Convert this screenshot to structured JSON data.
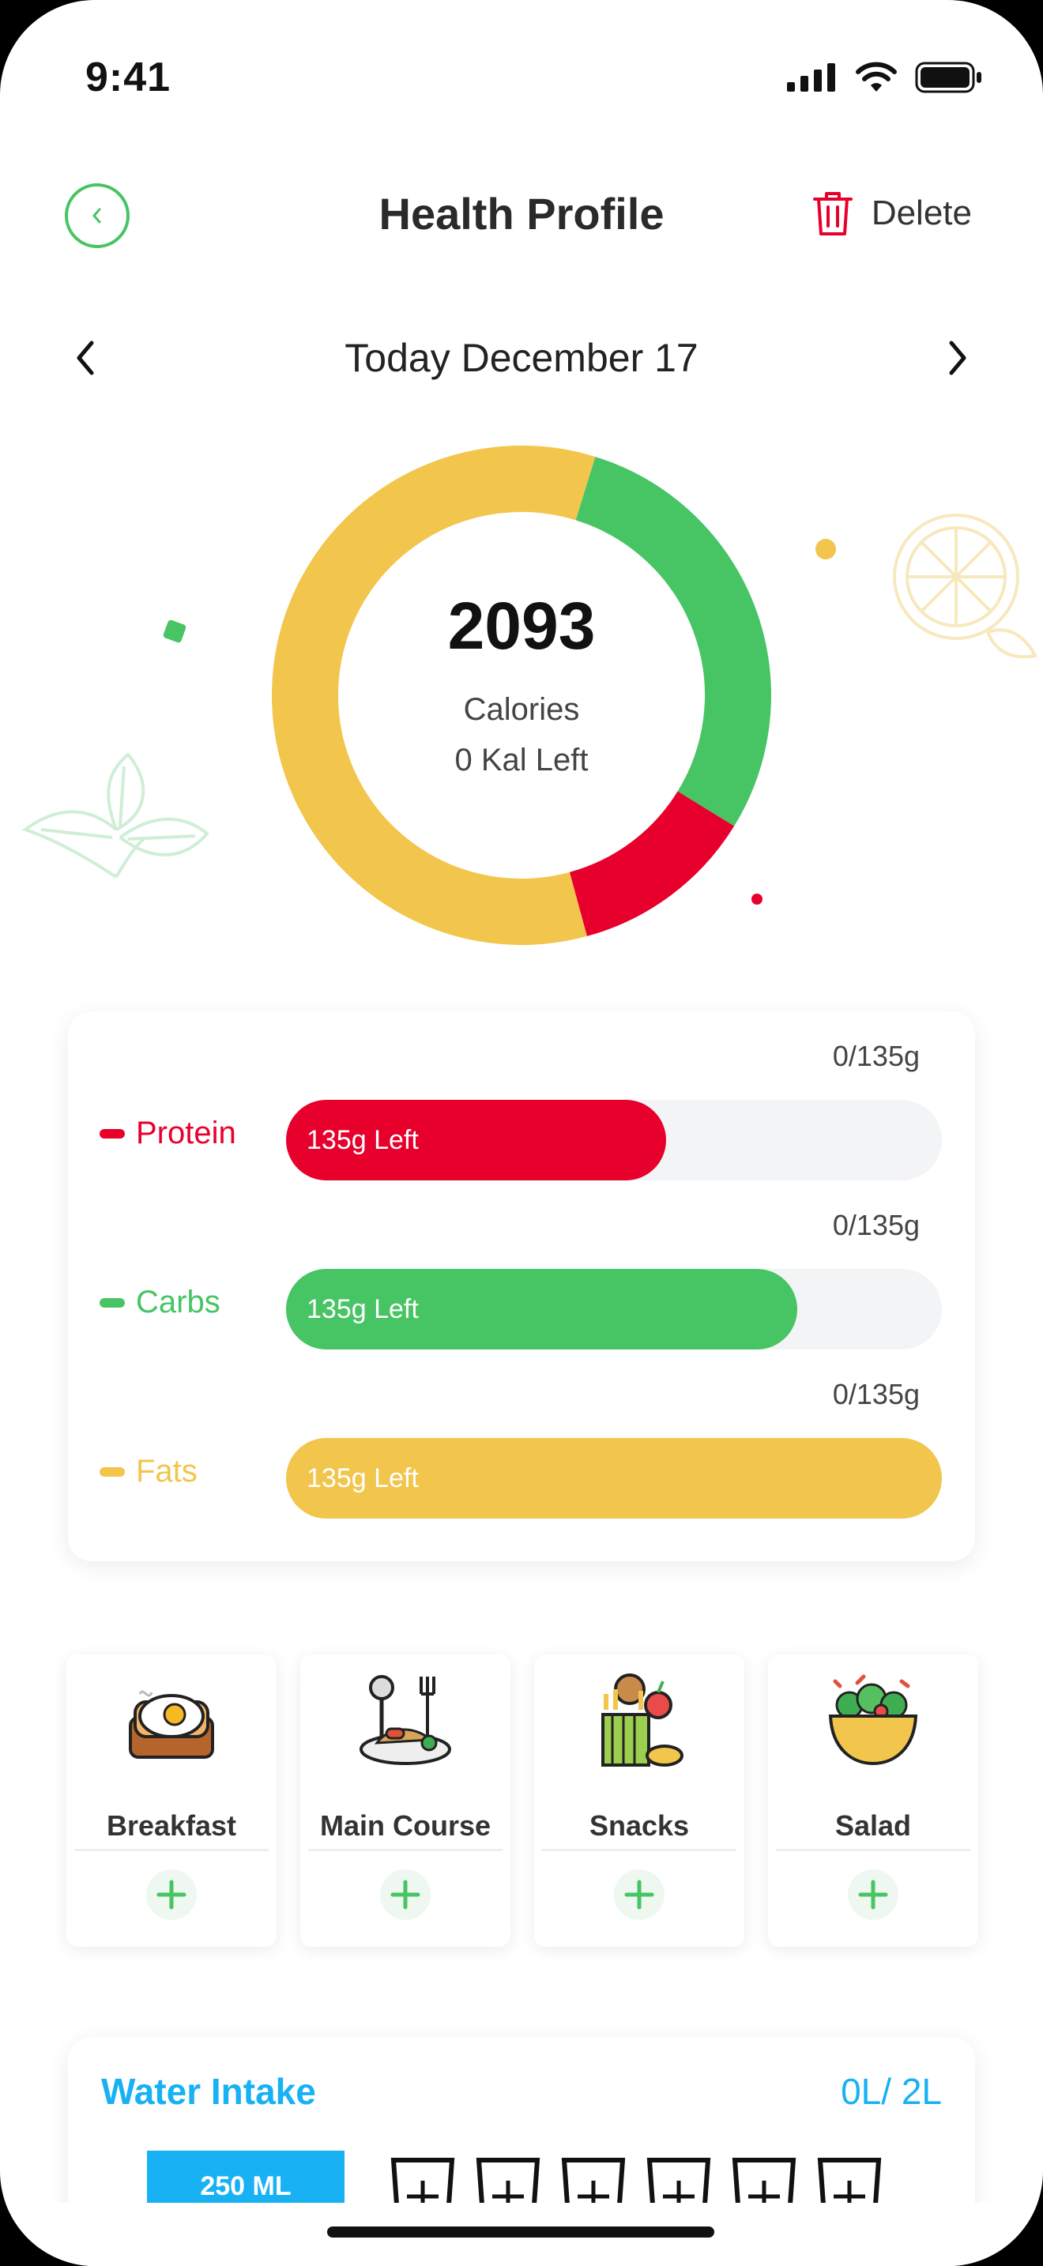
{
  "status_bar": {
    "time": "9:41"
  },
  "header": {
    "title": "Health Profile",
    "delete_label": "Delete"
  },
  "date_nav": {
    "label": "Today December 17"
  },
  "calories": {
    "value": "2093",
    "label": "Calories",
    "left": "0 Kal Left",
    "ring_segments": [
      {
        "name": "Carbs",
        "fraction": 0.29,
        "color": "#47c463"
      },
      {
        "name": "Protein",
        "fraction": 0.12,
        "color": "#e8002d"
      },
      {
        "name": "Fats",
        "fraction": 0.59,
        "color": "#f2c64c"
      }
    ]
  },
  "macros": [
    {
      "name": "Protein",
      "total": "0/135g",
      "fill_label": "135g Left",
      "fill_fraction": 0.58,
      "color": "#e8002d"
    },
    {
      "name": "Carbs",
      "total": "0/135g",
      "fill_label": "135g Left",
      "fill_fraction": 0.78,
      "color": "#47c463"
    },
    {
      "name": "Fats",
      "total": "0/135g",
      "fill_label": "135g Left",
      "fill_fraction": 1.0,
      "color": "#f2c64c"
    }
  ],
  "meals": [
    {
      "label": "Breakfast",
      "icon": "breakfast-icon"
    },
    {
      "label": "Main Course",
      "icon": "main-course-icon"
    },
    {
      "label": "Snacks",
      "icon": "snacks-icon"
    },
    {
      "label": "Salad",
      "icon": "salad-icon"
    }
  ],
  "water": {
    "title": "Water Intake",
    "amount": "0L/ 2L",
    "selected_label": "250 ML",
    "accent": "#17b1f4"
  }
}
